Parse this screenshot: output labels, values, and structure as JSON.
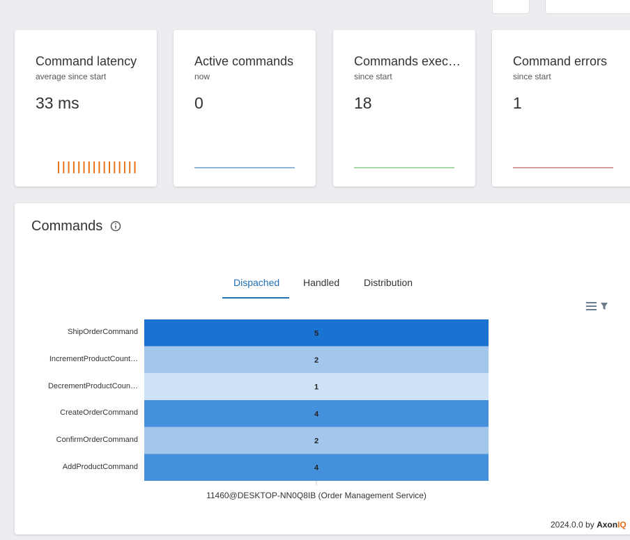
{
  "cards": [
    {
      "title": "Command latency",
      "subtitle": "average since start",
      "value": "33 ms",
      "color": "#e8711a",
      "spark": "bars"
    },
    {
      "title": "Active commands",
      "subtitle": "now",
      "value": "0",
      "color": "#1f6fb5",
      "spark": "line"
    },
    {
      "title": "Commands exec…",
      "subtitle": "since start",
      "value": "18",
      "color": "#4caf50",
      "spark": "line"
    },
    {
      "title": "Command errors",
      "subtitle": "since start",
      "value": "1",
      "color": "#b03a3a",
      "spark": "line"
    }
  ],
  "panel": {
    "title": "Commands",
    "tabs": [
      "Dispached",
      "Handled",
      "Distribution"
    ],
    "active_tab": 0,
    "heatmap": {
      "rows": [
        {
          "label": "ShipOrderCommand",
          "value": 5,
          "color": "#1a73d0"
        },
        {
          "label": "IncrementProductCount…",
          "value": 2,
          "color": "#a3c6ec"
        },
        {
          "label": "DecrementProductCoun…",
          "value": 1,
          "color": "#cfe1f4"
        },
        {
          "label": "CreateOrderCommand",
          "value": 4,
          "color": "#4590da"
        },
        {
          "label": "ConfirmOrderCommand",
          "value": 2,
          "color": "#a3c6ec"
        },
        {
          "label": "AddProductCommand",
          "value": 4,
          "color": "#4590da"
        }
      ],
      "x_label": "11460@DESKTOP-NN0Q8IB (Order Management Service)"
    }
  },
  "footer": {
    "version": "2024.0.0 by",
    "brand": "Axon",
    "brand_accent": "IQ"
  }
}
